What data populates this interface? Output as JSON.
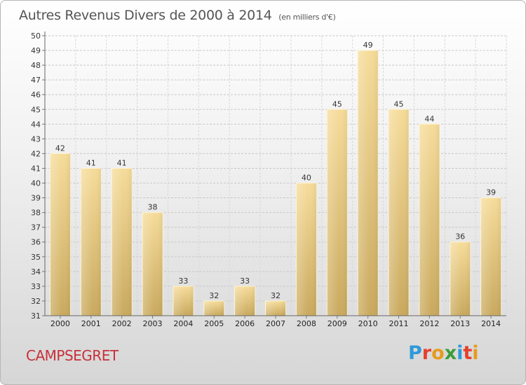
{
  "header": {
    "title": "Autres Revenus Divers de 2000 à 2014",
    "subtitle": "(en milliers d'€)"
  },
  "commune": "CAMPSEGRET",
  "logo": {
    "letters": [
      "P",
      "r",
      "o",
      "x",
      "i",
      "t",
      "i"
    ],
    "colors": [
      "#2e9ad8",
      "#e6402c",
      "#e69b1d",
      "#3b9c3a",
      "#2e9ad8",
      "#e6402c",
      "#e69b1d"
    ]
  },
  "chart_data": {
    "type": "bar",
    "title": "Autres Revenus Divers de 2000 à 2014",
    "subtitle": "(en milliers d'€)",
    "categories": [
      "2000",
      "2001",
      "2002",
      "2003",
      "2004",
      "2005",
      "2006",
      "2007",
      "2008",
      "2009",
      "2010",
      "2011",
      "2012",
      "2013",
      "2014"
    ],
    "values": [
      42,
      41,
      41,
      38,
      33,
      32,
      33,
      32,
      40,
      45,
      49,
      45,
      44,
      36,
      39
    ],
    "ylim": [
      31,
      50
    ],
    "yticks": [
      31,
      32,
      33,
      34,
      35,
      36,
      37,
      38,
      39,
      40,
      41,
      42,
      43,
      44,
      45,
      46,
      47,
      48,
      49,
      50
    ],
    "grid": true,
    "bar_color": "#ecc979",
    "xlabel": "",
    "ylabel": ""
  }
}
